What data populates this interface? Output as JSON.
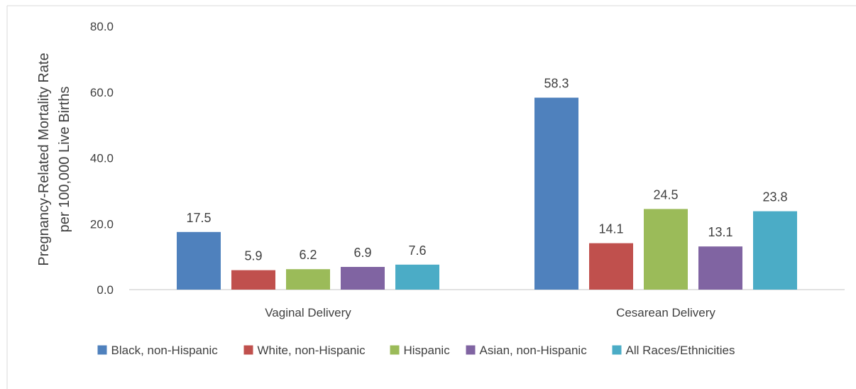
{
  "chart_data": {
    "type": "bar",
    "title": "",
    "xlabel": "",
    "ylabel_lines": [
      "Pregnancy-Related Mortality Rate",
      "per 100,000 Live Births"
    ],
    "ylim": [
      0,
      80
    ],
    "yticks": [
      0,
      20,
      40,
      60,
      80
    ],
    "ytick_labels": [
      "0.0",
      "20.0",
      "40.0",
      "60.0",
      "80.0"
    ],
    "categories": [
      "Vaginal Delivery",
      "Cesarean Delivery"
    ],
    "series": [
      {
        "name": "Black, non-Hispanic",
        "color": "#4F81BD",
        "values": [
          17.5,
          58.3
        ],
        "labels": [
          "17.5",
          "58.3"
        ]
      },
      {
        "name": "White, non-Hispanic",
        "color": "#C0504D",
        "values": [
          5.9,
          14.1
        ],
        "labels": [
          "5.9",
          "14.1"
        ]
      },
      {
        "name": "Hispanic",
        "color": "#9BBB59",
        "values": [
          6.2,
          24.5
        ],
        "labels": [
          "6.2",
          "24.5"
        ]
      },
      {
        "name": "Asian, non-Hispanic",
        "color": "#8064A2",
        "values": [
          6.9,
          13.1
        ],
        "labels": [
          "6.9",
          "13.1"
        ]
      },
      {
        "name": "All Races/Ethnicities",
        "color": "#4BACC6",
        "values": [
          7.6,
          23.8
        ],
        "labels": [
          "7.6",
          "23.8"
        ]
      }
    ],
    "grid": false,
    "legend_position": "bottom"
  }
}
